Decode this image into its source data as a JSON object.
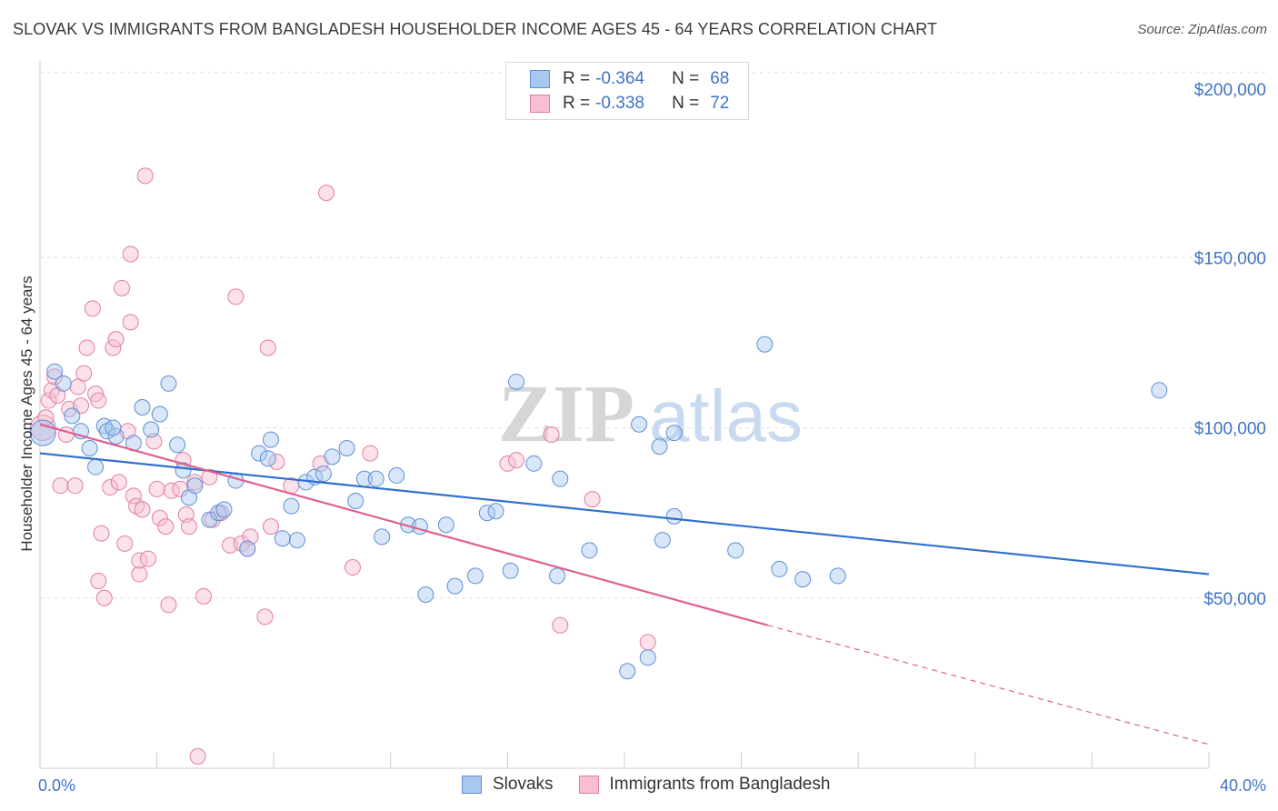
{
  "title": "SLOVAK VS IMMIGRANTS FROM BANGLADESH HOUSEHOLDER INCOME AGES 45 - 64 YEARS CORRELATION CHART",
  "source": "Source: ZipAtlas.com",
  "watermark": {
    "zip": "ZIP",
    "atlas": "atlas"
  },
  "legend": {
    "rows": [
      {
        "r_label": "R =",
        "r_value": "-0.364",
        "n_label": "N =",
        "n_value": "68",
        "color": "#a9c7ef",
        "border": "#5f8fd6"
      },
      {
        "r_label": "R =",
        "r_value": "-0.338",
        "n_label": "N =",
        "n_value": "72",
        "color": "#f7bfd0",
        "border": "#e07ea0"
      }
    ]
  },
  "bottom_legend": [
    "Slovaks",
    "Immigrants from Bangladesh"
  ],
  "colors": {
    "blue_line": "#2f6fcf",
    "pink_line": "#e0608f",
    "blue_fill": "#a9c7ef",
    "pink_fill": "#f7bfd0",
    "tick_text": "#3f73c8"
  },
  "chart_data": {
    "type": "scatter",
    "title": "SLOVAK VS IMMIGRANTS FROM BANGLADESH HOUSEHOLDER INCOME AGES 45 - 64 YEARS CORRELATION CHART",
    "xlabel": "",
    "ylabel": "Householder Income Ages 45 - 64 years",
    "xlim": [
      0,
      40
    ],
    "ylim": [
      0,
      210000
    ],
    "x_tick_labels": [
      "0.0%",
      "40.0%"
    ],
    "y_ticks": [
      50000,
      100000,
      150000,
      200000
    ],
    "y_tick_labels": [
      "$50,000",
      "$100,000",
      "$150,000",
      "$200,000"
    ],
    "grid": true,
    "series": [
      {
        "name": "Slovaks",
        "r": -0.364,
        "n": 68,
        "trend": {
          "x": [
            0,
            40
          ],
          "y": [
            92500,
            57000
          ]
        },
        "points": [
          [
            0.1,
            98500
          ],
          [
            0.5,
            116500
          ],
          [
            0.8,
            113000
          ],
          [
            1.1,
            103500
          ],
          [
            1.4,
            99000
          ],
          [
            1.7,
            94000
          ],
          [
            1.9,
            88500
          ],
          [
            2.2,
            100500
          ],
          [
            2.3,
            99000
          ],
          [
            2.6,
            97500
          ],
          [
            3.2,
            95500
          ],
          [
            3.5,
            106000
          ],
          [
            3.8,
            99500
          ],
          [
            4.1,
            104000
          ],
          [
            4.4,
            113000
          ],
          [
            4.7,
            95000
          ],
          [
            4.9,
            87500
          ],
          [
            5.1,
            79500
          ],
          [
            5.3,
            83000
          ],
          [
            5.8,
            73000
          ],
          [
            6.1,
            75000
          ],
          [
            6.3,
            76000
          ],
          [
            6.7,
            84500
          ],
          [
            7.1,
            64500
          ],
          [
            7.5,
            92500
          ],
          [
            7.8,
            91000
          ],
          [
            7.9,
            96500
          ],
          [
            8.3,
            67500
          ],
          [
            8.6,
            77000
          ],
          [
            8.8,
            67000
          ],
          [
            9.1,
            84000
          ],
          [
            9.4,
            85500
          ],
          [
            9.7,
            86500
          ],
          [
            10.0,
            91500
          ],
          [
            10.5,
            94000
          ],
          [
            10.8,
            78500
          ],
          [
            11.1,
            85000
          ],
          [
            11.5,
            85000
          ],
          [
            11.7,
            68000
          ],
          [
            12.2,
            86000
          ],
          [
            12.6,
            71500
          ],
          [
            13.0,
            71000
          ],
          [
            13.2,
            51000
          ],
          [
            13.9,
            71500
          ],
          [
            14.2,
            53500
          ],
          [
            14.9,
            56500
          ],
          [
            15.3,
            75000
          ],
          [
            15.6,
            75500
          ],
          [
            16.1,
            58000
          ],
          [
            16.3,
            113500
          ],
          [
            16.9,
            89500
          ],
          [
            17.7,
            56500
          ],
          [
            17.8,
            85000
          ],
          [
            18.8,
            64000
          ],
          [
            20.5,
            101000
          ],
          [
            20.1,
            28500
          ],
          [
            20.8,
            32500
          ],
          [
            21.2,
            94500
          ],
          [
            21.3,
            67000
          ],
          [
            21.7,
            98500
          ],
          [
            21.7,
            74000
          ],
          [
            23.8,
            64000
          ],
          [
            24.8,
            124500
          ],
          [
            25.3,
            58500
          ],
          [
            26.1,
            55500
          ],
          [
            27.3,
            56500
          ],
          [
            38.3,
            111000
          ],
          [
            2.5,
            100000
          ]
        ]
      },
      {
        "name": "Immigrants from Bangladesh",
        "r": -0.338,
        "n": 72,
        "trend": {
          "x": [
            0,
            24.9
          ],
          "y": [
            101000,
            42000
          ]
        },
        "trend_dashed": {
          "x": [
            24.9,
            40
          ],
          "y": [
            42000,
            7000
          ]
        },
        "points": [
          [
            0.1,
            100000
          ],
          [
            0.2,
            103000
          ],
          [
            0.3,
            108000
          ],
          [
            0.4,
            111000
          ],
          [
            0.5,
            115000
          ],
          [
            0.6,
            109500
          ],
          [
            0.7,
            83000
          ],
          [
            0.9,
            98000
          ],
          [
            1.0,
            105500
          ],
          [
            1.2,
            83000
          ],
          [
            1.3,
            112000
          ],
          [
            1.4,
            106500
          ],
          [
            1.5,
            116000
          ],
          [
            1.6,
            123500
          ],
          [
            1.8,
            135000
          ],
          [
            1.9,
            110000
          ],
          [
            2.0,
            108000
          ],
          [
            2.0,
            55000
          ],
          [
            2.1,
            69000
          ],
          [
            2.2,
            50000
          ],
          [
            2.4,
            82500
          ],
          [
            2.5,
            123500
          ],
          [
            2.6,
            126000
          ],
          [
            2.7,
            84000
          ],
          [
            2.8,
            141000
          ],
          [
            2.9,
            66000
          ],
          [
            3.0,
            99000
          ],
          [
            3.1,
            151000
          ],
          [
            3.1,
            131000
          ],
          [
            3.2,
            80000
          ],
          [
            3.3,
            77000
          ],
          [
            3.4,
            57000
          ],
          [
            3.4,
            61000
          ],
          [
            3.5,
            76000
          ],
          [
            3.6,
            174000
          ],
          [
            3.7,
            61500
          ],
          [
            3.9,
            96000
          ],
          [
            4.0,
            82000
          ],
          [
            4.1,
            73500
          ],
          [
            4.3,
            71000
          ],
          [
            4.4,
            48000
          ],
          [
            4.5,
            81500
          ],
          [
            4.9,
            90500
          ],
          [
            5.0,
            74500
          ],
          [
            5.1,
            71000
          ],
          [
            5.3,
            84000
          ],
          [
            5.4,
            3500
          ],
          [
            5.6,
            50500
          ],
          [
            5.8,
            85500
          ],
          [
            5.9,
            73000
          ],
          [
            6.2,
            75000
          ],
          [
            6.5,
            65500
          ],
          [
            6.7,
            138500
          ],
          [
            6.9,
            66000
          ],
          [
            7.1,
            64500
          ],
          [
            7.2,
            68000
          ],
          [
            7.7,
            44500
          ],
          [
            7.8,
            123500
          ],
          [
            7.9,
            71000
          ],
          [
            8.1,
            90000
          ],
          [
            8.6,
            83000
          ],
          [
            9.6,
            89500
          ],
          [
            9.8,
            169000
          ],
          [
            10.7,
            59000
          ],
          [
            11.3,
            92500
          ],
          [
            16.0,
            89500
          ],
          [
            16.3,
            90500
          ],
          [
            17.5,
            98000
          ],
          [
            17.8,
            42000
          ],
          [
            18.9,
            79000
          ],
          [
            20.8,
            37000
          ],
          [
            4.8,
            82000
          ]
        ]
      }
    ]
  }
}
